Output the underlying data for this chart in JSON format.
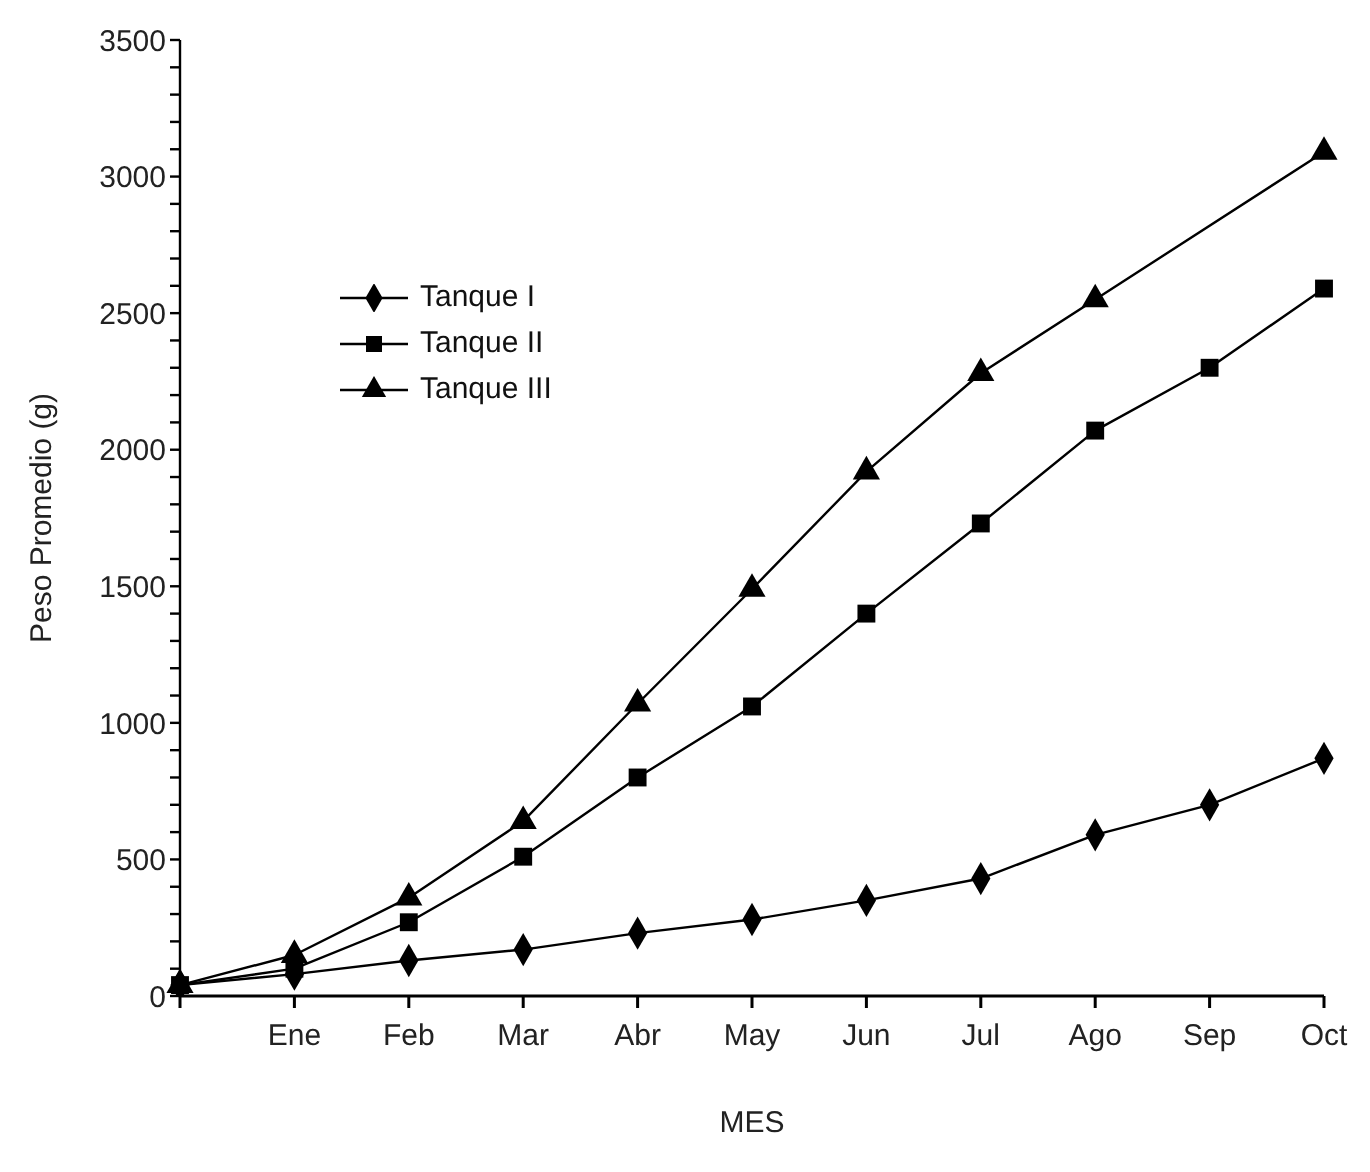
{
  "chart_data": {
    "type": "line",
    "xlabel": "MES",
    "ylabel": "Peso Promedio (g)",
    "categories": [
      null,
      "Ene",
      "Feb",
      "Mar",
      "Abr",
      "May",
      "Jun",
      "Jul",
      "Ago",
      "Sep",
      "Oct"
    ],
    "series": [
      {
        "name": "Tanque I",
        "color": "#000000",
        "marker": "diamond",
        "values": [
          40,
          80,
          130,
          170,
          230,
          280,
          350,
          430,
          590,
          700,
          870
        ]
      },
      {
        "name": "Tanque II",
        "color": "#000000",
        "marker": "square",
        "values": [
          40,
          100,
          270,
          510,
          800,
          1060,
          1400,
          1730,
          2070,
          2300,
          2590
        ]
      },
      {
        "name": "Tanque III",
        "color": "#000000",
        "marker": "triangle",
        "values": [
          40,
          150,
          360,
          640,
          1070,
          1490,
          1920,
          2280,
          2550,
          null,
          3090
        ]
      }
    ],
    "ylim": [
      0,
      3500
    ],
    "yticks": [
      0,
      {
        "value": 100,
        "label": null
      },
      {
        "value": 200,
        "label": null
      },
      {
        "value": 300,
        "label": null
      },
      {
        "value": 400,
        "label": null
      },
      500,
      {
        "value": 600,
        "label": null
      },
      {
        "value": 700,
        "label": null
      },
      {
        "value": 800,
        "label": null
      },
      {
        "value": 900,
        "label": null
      },
      1000,
      {
        "value": 1100,
        "label": null
      },
      {
        "value": 1200,
        "label": null
      },
      {
        "value": 1300,
        "label": null
      },
      {
        "value": 1400,
        "label": null
      },
      1500,
      {
        "value": 1600,
        "label": null
      },
      {
        "value": 1700,
        "label": null
      },
      {
        "value": 1800,
        "label": null
      },
      {
        "value": 1900,
        "label": null
      },
      2000,
      {
        "value": 2100,
        "label": null
      },
      {
        "value": 2200,
        "label": null
      },
      {
        "value": 2300,
        "label": null
      },
      {
        "value": 2400,
        "label": null
      },
      2500,
      {
        "value": 2600,
        "label": null
      },
      {
        "value": 2700,
        "label": null
      },
      {
        "value": 2800,
        "label": null
      },
      {
        "value": 2900,
        "label": null
      },
      3000,
      {
        "value": 3100,
        "label": null
      },
      {
        "value": 3200,
        "label": null
      },
      {
        "value": 3300,
        "label": null
      },
      {
        "value": 3400,
        "label": null
      },
      3500
    ],
    "grid": false,
    "legend": "top left",
    "line_style": "solid"
  }
}
